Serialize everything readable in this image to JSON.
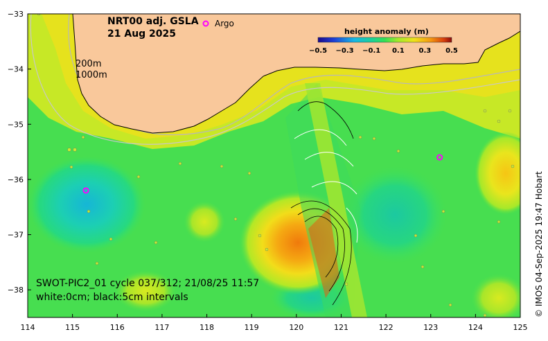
{
  "map": {
    "title_line1": "NRT00 adj. GSLA",
    "title_line2": "21 Aug 2025",
    "argo_label": "Argo",
    "argo_symbol": "o",
    "argo_color": "#ff00ff",
    "depth_label_1": "200m",
    "depth_label_2": "1000m",
    "info_line1": "SWOT-PIC2_01 cycle 037/312; 21/08/25 11:57",
    "info_line2": "white:0cm; black:5cm intervals",
    "credit": "© IMOS 04-Sep-2025 19:47 Hobart",
    "land_color": "#f9c89b",
    "colorbar": {
      "title": "height anomaly (m)",
      "ticks": [
        "−0.5",
        "−0.3",
        "−0.1",
        "0.1",
        "0.3",
        "0.5"
      ]
    },
    "x_ticks": [
      "114",
      "115",
      "116",
      "117",
      "118",
      "119",
      "120",
      "121",
      "122",
      "123",
      "124",
      "125"
    ],
    "y_ticks": [
      "−33",
      "−34",
      "−35",
      "−36",
      "−37",
      "−38"
    ]
  },
  "chart_data": {
    "type": "heatmap",
    "xlabel": "",
    "ylabel": "",
    "xlim": [
      114,
      125
    ],
    "ylim": [
      -38.5,
      -33
    ],
    "colorbar_range": [
      -0.5,
      0.5
    ],
    "argo_floats": [
      {
        "lon": 115.3,
        "lat": -36.2
      },
      {
        "lon": 123.2,
        "lat": -35.6
      }
    ]
  }
}
